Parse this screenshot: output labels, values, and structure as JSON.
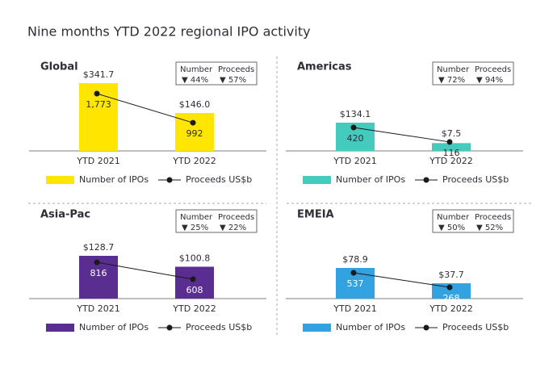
{
  "title": "Nine months YTD 2022 regional IPO activity",
  "chart_data": [
    {
      "type": "bar",
      "title": "Global",
      "categories": [
        "YTD 2021",
        "YTD 2022"
      ],
      "series": [
        {
          "name": "Number of IPOs",
          "color": "#ffe600",
          "values": [
            1773,
            992
          ],
          "value_labels": [
            "1,773",
            "992"
          ]
        },
        {
          "name": "Proceeds US$b",
          "type": "line",
          "color": "#1a1a1a",
          "values": [
            341.7,
            146.0
          ],
          "value_labels": [
            "$341.7",
            "$146.0"
          ]
        }
      ],
      "change": {
        "labels": [
          "Number",
          "Proceeds"
        ],
        "values": [
          "▼ 44%",
          "▼ 57%"
        ]
      }
    },
    {
      "type": "bar",
      "title": "Americas",
      "categories": [
        "YTD 2021",
        "YTD 2022"
      ],
      "series": [
        {
          "name": "Number of IPOs",
          "color": "#45cbbd",
          "values": [
            420,
            116
          ],
          "value_labels": [
            "420",
            "116"
          ]
        },
        {
          "name": "Proceeds US$b",
          "type": "line",
          "color": "#1a1a1a",
          "values": [
            134.1,
            7.5
          ],
          "value_labels": [
            "$134.1",
            "$7.5"
          ]
        }
      ],
      "change": {
        "labels": [
          "Number",
          "Proceeds"
        ],
        "values": [
          "▼ 72%",
          "▼ 94%"
        ]
      }
    },
    {
      "type": "bar",
      "title": "Asia-Pac",
      "categories": [
        "YTD 2021",
        "YTD 2022"
      ],
      "series": [
        {
          "name": "Number of IPOs",
          "color": "#5a2d91",
          "values": [
            816,
            608
          ],
          "value_labels": [
            "816",
            "608"
          ]
        },
        {
          "name": "Proceeds US$b",
          "type": "line",
          "color": "#1a1a1a",
          "values": [
            128.7,
            100.8
          ],
          "value_labels": [
            "$128.7",
            "$100.8"
          ]
        }
      ],
      "change": {
        "labels": [
          "Number",
          "Proceeds"
        ],
        "values": [
          "▼ 25%",
          "▼ 22%"
        ]
      }
    },
    {
      "type": "bar",
      "title": "EMEIA",
      "categories": [
        "YTD 2021",
        "YTD 2022"
      ],
      "series": [
        {
          "name": "Number of IPOs",
          "color": "#32a3e0",
          "values": [
            537,
            268
          ],
          "value_labels": [
            "537",
            "268"
          ]
        },
        {
          "name": "Proceeds US$b",
          "type": "line",
          "color": "#1a1a1a",
          "values": [
            78.9,
            37.7
          ],
          "value_labels": [
            "$78.9",
            "$37.7"
          ]
        }
      ],
      "change": {
        "labels": [
          "Number",
          "Proceeds"
        ],
        "values": [
          "▼ 50%",
          "▼ 52%"
        ]
      }
    }
  ]
}
